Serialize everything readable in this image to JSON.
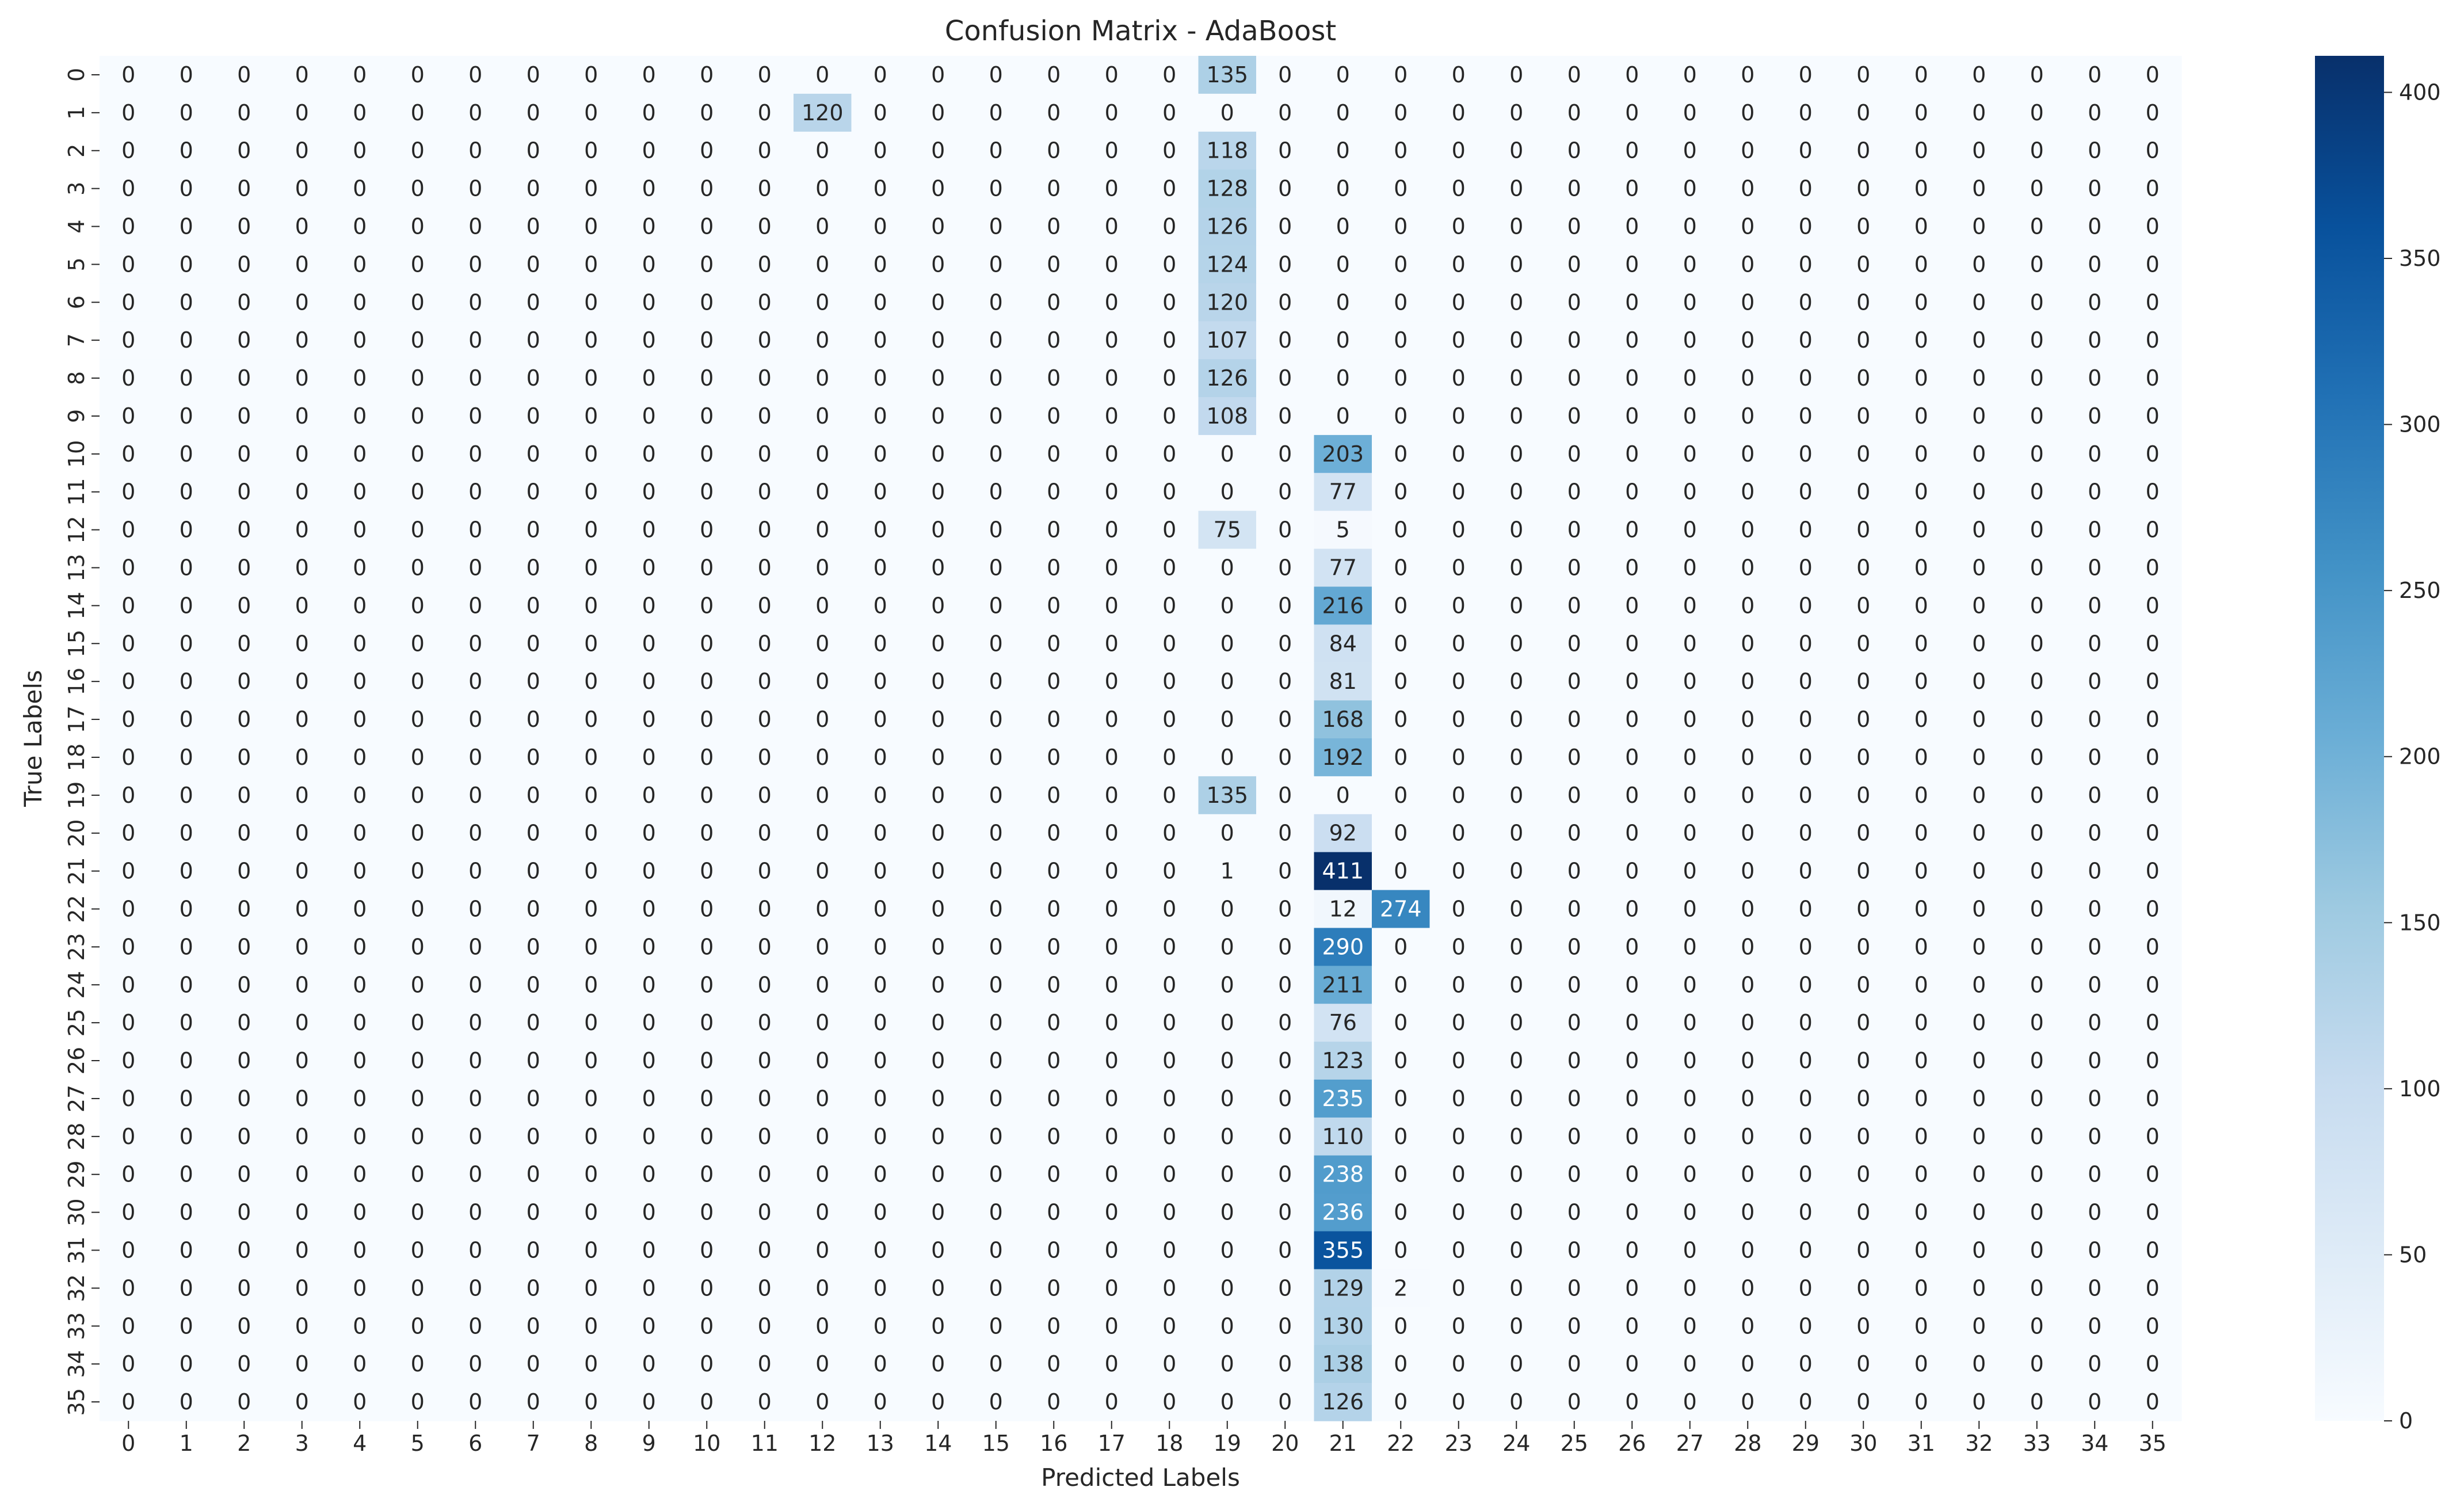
{
  "chart_data": {
    "type": "heatmap",
    "title": "Confusion Matrix - AdaBoost",
    "xlabel": "Predicted Labels",
    "ylabel": "True Labels",
    "row_labels": [
      "0",
      "1",
      "2",
      "3",
      "4",
      "5",
      "6",
      "7",
      "8",
      "9",
      "10",
      "11",
      "12",
      "13",
      "14",
      "15",
      "16",
      "17",
      "18",
      "19",
      "20",
      "21",
      "22",
      "23",
      "24",
      "25",
      "26",
      "27",
      "28",
      "29",
      "30",
      "31",
      "32",
      "33",
      "34",
      "35"
    ],
    "col_labels": [
      "0",
      "1",
      "2",
      "3",
      "4",
      "5",
      "6",
      "7",
      "8",
      "9",
      "10",
      "11",
      "12",
      "13",
      "14",
      "15",
      "16",
      "17",
      "18",
      "19",
      "20",
      "21",
      "22",
      "23",
      "24",
      "25",
      "26",
      "27",
      "28",
      "29",
      "30",
      "31",
      "32",
      "33",
      "34",
      "35"
    ],
    "nonzero_cells": [
      {
        "row": 0,
        "col": 19,
        "value": 135
      },
      {
        "row": 1,
        "col": 12,
        "value": 120
      },
      {
        "row": 2,
        "col": 19,
        "value": 118
      },
      {
        "row": 3,
        "col": 19,
        "value": 128
      },
      {
        "row": 4,
        "col": 19,
        "value": 126
      },
      {
        "row": 5,
        "col": 19,
        "value": 124
      },
      {
        "row": 6,
        "col": 19,
        "value": 120
      },
      {
        "row": 7,
        "col": 19,
        "value": 107
      },
      {
        "row": 8,
        "col": 19,
        "value": 126
      },
      {
        "row": 9,
        "col": 19,
        "value": 108
      },
      {
        "row": 10,
        "col": 21,
        "value": 203
      },
      {
        "row": 11,
        "col": 21,
        "value": 77
      },
      {
        "row": 12,
        "col": 19,
        "value": 75
      },
      {
        "row": 12,
        "col": 21,
        "value": 5
      },
      {
        "row": 13,
        "col": 21,
        "value": 77
      },
      {
        "row": 14,
        "col": 21,
        "value": 216
      },
      {
        "row": 15,
        "col": 21,
        "value": 84
      },
      {
        "row": 16,
        "col": 21,
        "value": 81
      },
      {
        "row": 17,
        "col": 21,
        "value": 168
      },
      {
        "row": 18,
        "col": 21,
        "value": 192
      },
      {
        "row": 19,
        "col": 19,
        "value": 135
      },
      {
        "row": 20,
        "col": 21,
        "value": 92
      },
      {
        "row": 21,
        "col": 19,
        "value": 1
      },
      {
        "row": 21,
        "col": 21,
        "value": 411
      },
      {
        "row": 22,
        "col": 21,
        "value": 12
      },
      {
        "row": 22,
        "col": 22,
        "value": 274
      },
      {
        "row": 23,
        "col": 21,
        "value": 290
      },
      {
        "row": 24,
        "col": 21,
        "value": 211
      },
      {
        "row": 25,
        "col": 21,
        "value": 76
      },
      {
        "row": 26,
        "col": 21,
        "value": 123
      },
      {
        "row": 27,
        "col": 21,
        "value": 235
      },
      {
        "row": 28,
        "col": 21,
        "value": 110
      },
      {
        "row": 29,
        "col": 21,
        "value": 238
      },
      {
        "row": 30,
        "col": 21,
        "value": 236
      },
      {
        "row": 31,
        "col": 21,
        "value": 355
      },
      {
        "row": 32,
        "col": 21,
        "value": 129
      },
      {
        "row": 32,
        "col": 22,
        "value": 2
      },
      {
        "row": 33,
        "col": 21,
        "value": 130
      },
      {
        "row": 34,
        "col": 21,
        "value": 138
      },
      {
        "row": 35,
        "col": 21,
        "value": 126
      }
    ],
    "default_value": 0,
    "colormap": "Blues",
    "colormap_stops": [
      "#f7fbff",
      "#deebf7",
      "#c6dbef",
      "#9ecae1",
      "#6baed6",
      "#4292c6",
      "#2171b5",
      "#08519c",
      "#08306b"
    ],
    "vmin": 0,
    "vmax": 411,
    "colorbar_ticks": [
      0,
      50,
      100,
      150,
      200,
      250,
      300,
      350,
      400
    ],
    "grid": false
  }
}
